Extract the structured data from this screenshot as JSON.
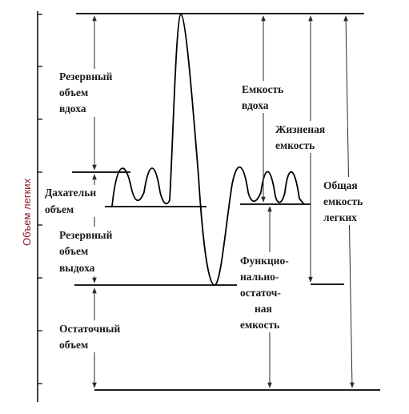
{
  "y_axis_label": "Объем легких",
  "labels": {
    "inspiratory_reserve": [
      "Резервный",
      "объем",
      "вдоха"
    ],
    "tidal_volume": [
      "Дахательн",
      "объем"
    ],
    "expiratory_reserve": [
      "Резервный",
      "объем",
      "выдоха"
    ],
    "residual_volume": [
      "Остаточный",
      "объем"
    ],
    "inspiratory_capacity": [
      "Емкость",
      "вдоха"
    ],
    "vital_capacity": [
      "Жизненая",
      "емкость"
    ],
    "total_capacity": [
      "Общая",
      "емкость",
      "легких"
    ],
    "functional_residual": [
      "Функцио-",
      "нально-",
      "остаточ-",
      "ная",
      "емкость"
    ]
  },
  "colors": {
    "line": "#000000",
    "axis_label": "#8a1a2a"
  }
}
